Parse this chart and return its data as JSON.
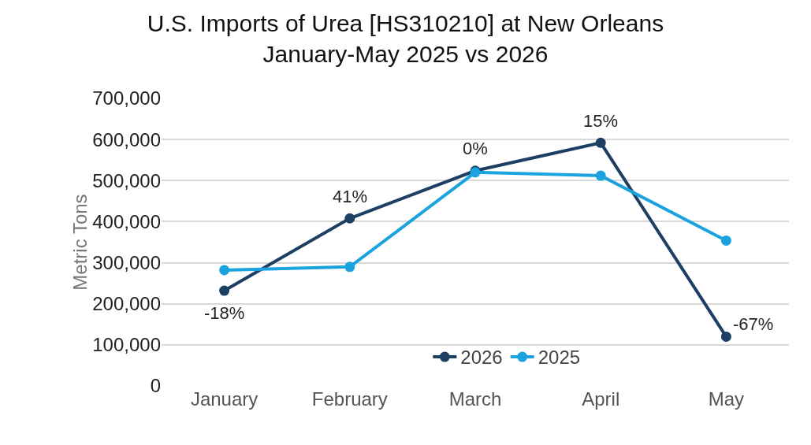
{
  "chart_data": {
    "type": "line",
    "title": "U.S. Imports of Urea [HS310210] at New Orleans\nJanuary-May 2025 vs 2026",
    "ylabel": "Metric Tons",
    "categories": [
      "January",
      "February",
      "March",
      "April",
      "May"
    ],
    "series": [
      {
        "name": "2026",
        "color": "#1d3f63",
        "values": [
          232000,
          408000,
          524000,
          592000,
          120000
        ]
      },
      {
        "name": "2025",
        "color": "#1ba3e0",
        "values": [
          282000,
          290000,
          520000,
          512000,
          354000
        ]
      }
    ],
    "annotations": [
      {
        "text": "-18%",
        "x": "January",
        "y": 232000
      },
      {
        "text": "41%",
        "x": "February",
        "y": 408000
      },
      {
        "text": "0%",
        "x": "March",
        "y": 524000
      },
      {
        "text": "15%",
        "x": "April",
        "y": 592000
      },
      {
        "text": "-67%",
        "x": "May",
        "y": 120000
      }
    ],
    "ylim": [
      0,
      700000
    ],
    "yticks": [
      0,
      {
        "value": 100000,
        "label": "100,000"
      },
      {
        "value": 200000,
        "label": "200,000"
      },
      {
        "value": 300000,
        "label": "300,000"
      },
      {
        "value": 400000,
        "label": "400,000"
      },
      {
        "value": 500000,
        "label": "500,000"
      },
      {
        "value": 600000,
        "label": "600,000"
      },
      {
        "value": 700000,
        "label": "700,000"
      }
    ],
    "grid": "y",
    "legend": "bottom",
    "marker": "circle",
    "line_style": "solid"
  }
}
